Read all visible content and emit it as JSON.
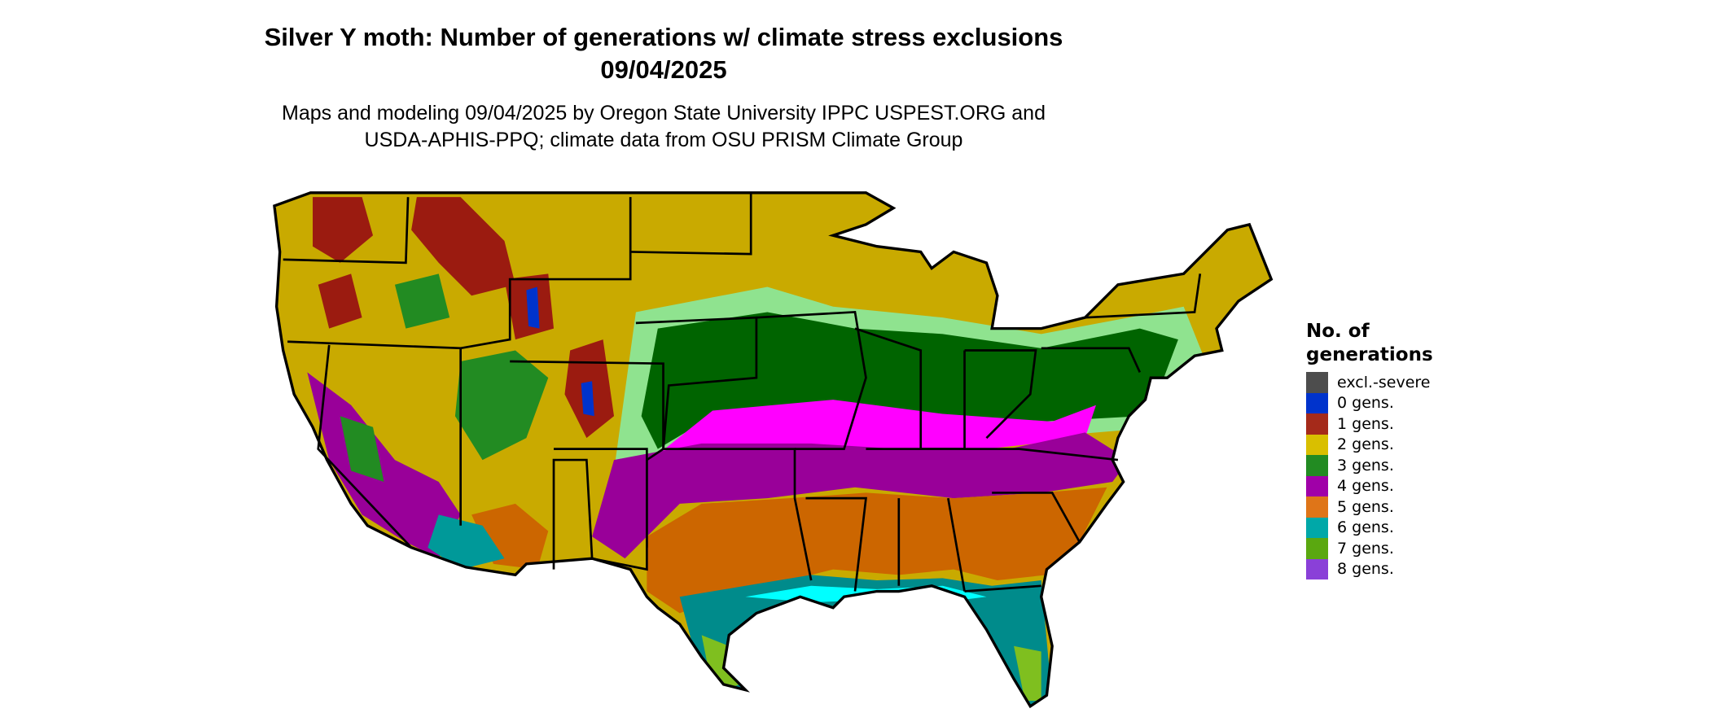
{
  "title": {
    "line1": "Silver Y moth: Number of generations w/ climate stress exclusions",
    "line2": "09/04/2025"
  },
  "subtitle": {
    "line1": "Maps and modeling 09/04/2025 by Oregon State University IPPC USPEST.ORG and",
    "line2": "USDA-APHIS-PPQ; climate data from OSU PRISM Climate Group"
  },
  "legend": {
    "title": "No. of generations",
    "items": [
      {
        "label": "excl.-severe",
        "color": "#4d4d4d"
      },
      {
        "label": "0 gens.",
        "color": "#0033cc"
      },
      {
        "label": "1 gens.",
        "color": "#a52a1a"
      },
      {
        "label": "2 gens.",
        "color": "#d9bf00"
      },
      {
        "label": "3 gens.",
        "color": "#228b22"
      },
      {
        "label": "4 gens.",
        "color": "#a000a8"
      },
      {
        "label": "5 gens.",
        "color": "#df7518"
      },
      {
        "label": "6 gens.",
        "color": "#00a8a8"
      },
      {
        "label": "7 gens.",
        "color": "#5aa810"
      },
      {
        "label": "8 gens.",
        "color": "#8a40d8"
      }
    ]
  }
}
